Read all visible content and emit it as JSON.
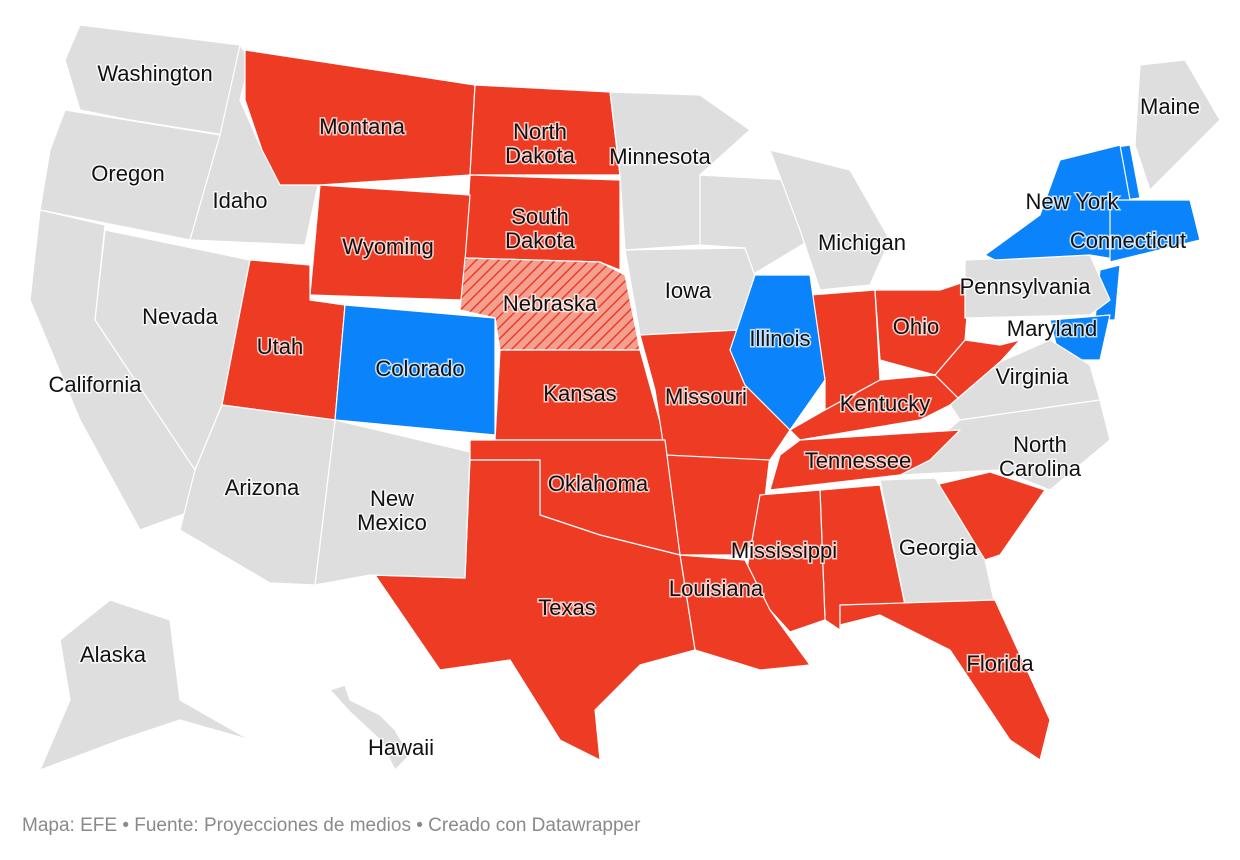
{
  "map": {
    "states": [
      {
        "label": "Washington",
        "color": "#dedede"
      },
      {
        "label": "Oregon",
        "color": "#dedede"
      },
      {
        "label": "Idaho",
        "color": "#dedede"
      },
      {
        "label": "Montana",
        "color": "#ee3b24"
      },
      {
        "label": "North Dakota",
        "color": "#ee3b24"
      },
      {
        "label": "South Dakota",
        "color": "#ee3b24"
      },
      {
        "label": "Wyoming",
        "color": "#ee3b24"
      },
      {
        "label": "Nebraska",
        "color": "#f4a090",
        "pattern": "hatched"
      },
      {
        "label": "Minnesota",
        "color": "#dedede"
      },
      {
        "label": "Iowa",
        "color": "#dedede"
      },
      {
        "label": "Michigan",
        "color": "#dedede"
      },
      {
        "label": "Nevada",
        "color": "#dedede"
      },
      {
        "label": "California",
        "color": "#dedede"
      },
      {
        "label": "Utah",
        "color": "#ee3b24"
      },
      {
        "label": "Colorado",
        "color": "#0a83fb"
      },
      {
        "label": "Kansas",
        "color": "#ee3b24"
      },
      {
        "label": "Missouri",
        "color": "#ee3b24"
      },
      {
        "label": "Illinois",
        "color": "#0a83fb"
      },
      {
        "label": "Ohio",
        "color": "#ee3b24"
      },
      {
        "label": "Kentucky",
        "color": "#ee3b24"
      },
      {
        "label": "Pennsylvania",
        "color": "#dedede"
      },
      {
        "label": "New York",
        "color": "#0a83fb"
      },
      {
        "label": "Maine",
        "color": "#dedede"
      },
      {
        "label": "Connecticut",
        "color": "#0a83fb"
      },
      {
        "label": "Maryland",
        "color": "#0a83fb"
      },
      {
        "label": "Virginia",
        "color": "#dedede"
      },
      {
        "label": "North Carolina",
        "color": "#dedede"
      },
      {
        "label": "Tennessee",
        "color": "#ee3b24"
      },
      {
        "label": "Georgia",
        "color": "#dedede"
      },
      {
        "label": "Mississippi",
        "color": "#ee3b24"
      },
      {
        "label": "Louisiana",
        "color": "#ee3b24"
      },
      {
        "label": "Oklahoma",
        "color": "#ee3b24"
      },
      {
        "label": "Texas",
        "color": "#ee3b24"
      },
      {
        "label": "New Mexico",
        "color": "#dedede"
      },
      {
        "label": "Arizona",
        "color": "#dedede"
      },
      {
        "label": "Florida",
        "color": "#ee3b24"
      },
      {
        "label": "Alaska",
        "color": "#dedede"
      },
      {
        "label": "Hawaii",
        "color": "#dedede"
      }
    ]
  },
  "footer": "Mapa: EFE • Fuente: Proyecciones de medios • Creado con Datawrapper"
}
